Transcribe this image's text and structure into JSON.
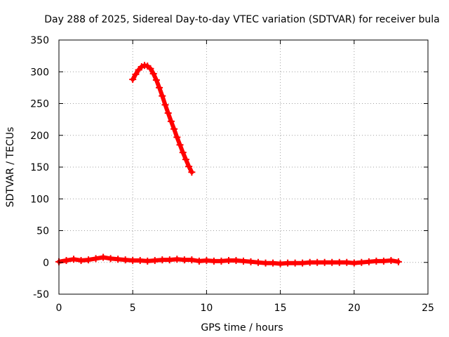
{
  "chart_data": {
    "type": "scatter",
    "title": "Day 288 of 2025, Sidereal Day-to-day VTEC variation (SDTVAR) for receiver bula",
    "xlabel": "GPS time / hours",
    "ylabel": "SDTVAR / TECUs",
    "xlim": [
      0,
      25
    ],
    "ylim": [
      -50,
      350
    ],
    "xticks": [
      0,
      5,
      10,
      15,
      20,
      25
    ],
    "xtick_labels": [
      "0",
      "5",
      "10",
      "15",
      "20",
      "25"
    ],
    "yticks": [
      -50,
      0,
      50,
      100,
      150,
      200,
      250,
      300,
      350
    ],
    "ytick_labels": [
      "-50",
      "0",
      "50",
      "100",
      "150",
      "200",
      "250",
      "300",
      "350"
    ],
    "grid": true,
    "color": "#ff0000",
    "series": [
      {
        "name": "satellite-arc-high",
        "x": [
          5.0,
          5.2,
          5.4,
          5.6,
          5.8,
          6.0,
          6.2,
          6.4,
          6.6,
          6.8,
          7.0,
          7.2,
          7.4,
          7.6,
          7.8,
          8.0,
          8.2,
          8.4,
          8.6,
          8.8,
          9.0
        ],
        "y": [
          288,
          296,
          303,
          308,
          310,
          309,
          305,
          297,
          287,
          275,
          262,
          248,
          235,
          222,
          210,
          197,
          185,
          173,
          162,
          151,
          142
        ]
      },
      {
        "name": "near-zero-arcs",
        "x": [
          0.0,
          0.5,
          1.0,
          1.5,
          2.0,
          2.5,
          3.0,
          3.5,
          4.0,
          4.5,
          5.0,
          5.5,
          6.0,
          6.5,
          7.0,
          7.5,
          8.0,
          8.5,
          9.0,
          9.5,
          10.0,
          10.5,
          11.0,
          11.5,
          12.0,
          12.5,
          13.0,
          13.5,
          14.0,
          14.5,
          15.0,
          15.5,
          16.0,
          16.5,
          17.0,
          17.5,
          18.0,
          18.5,
          19.0,
          19.5,
          20.0,
          20.5,
          21.0,
          21.5,
          22.0,
          22.5,
          23.0
        ],
        "y": [
          1,
          3,
          5,
          3,
          4,
          6,
          8,
          6,
          5,
          4,
          3,
          3,
          2,
          3,
          4,
          4,
          5,
          4,
          4,
          2,
          3,
          2,
          2,
          3,
          3,
          2,
          1,
          0,
          -1,
          -1,
          -2,
          -1,
          -1,
          -1,
          0,
          0,
          0,
          0,
          0,
          0,
          -1,
          0,
          1,
          2,
          2,
          3,
          1
        ]
      }
    ]
  }
}
